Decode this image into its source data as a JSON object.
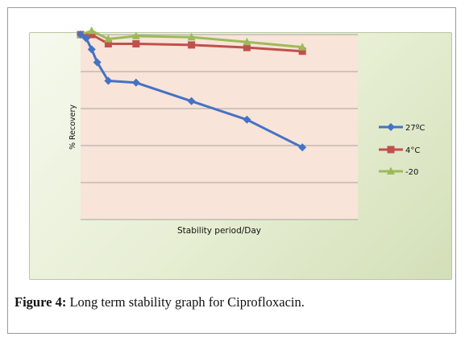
{
  "caption": {
    "label": "Figure 4:",
    "text": " Long term stability graph for Ciprofloxacin."
  },
  "chart_data": {
    "type": "line",
    "title": "",
    "xlabel": "Stability period/Day",
    "ylabel": "% Recovery",
    "xlim": [
      0,
      100
    ],
    "ylim": [
      0,
      5
    ],
    "grid": true,
    "legend_position": "right",
    "plot_background": "#f8e4d8",
    "series": [
      {
        "name": "27ºC",
        "color": "#4472c4",
        "marker": "diamond",
        "x": [
          0,
          2,
          4,
          6,
          10,
          20,
          40,
          60,
          80
        ],
        "y": [
          5.0,
          4.9,
          4.6,
          4.25,
          3.75,
          3.7,
          3.2,
          2.7,
          1.95
        ]
      },
      {
        "name": "4°C",
        "color": "#c0504d",
        "marker": "square",
        "x": [
          0,
          4,
          10,
          20,
          40,
          60,
          80
        ],
        "y": [
          5.0,
          5.0,
          4.75,
          4.75,
          4.72,
          4.65,
          4.55
        ]
      },
      {
        "name": "-20",
        "color": "#9bbb59",
        "marker": "triangle",
        "x": [
          0,
          4,
          10,
          20,
          40,
          60,
          80
        ],
        "y": [
          5.0,
          5.1,
          4.88,
          4.96,
          4.93,
          4.8,
          4.66
        ]
      }
    ]
  }
}
